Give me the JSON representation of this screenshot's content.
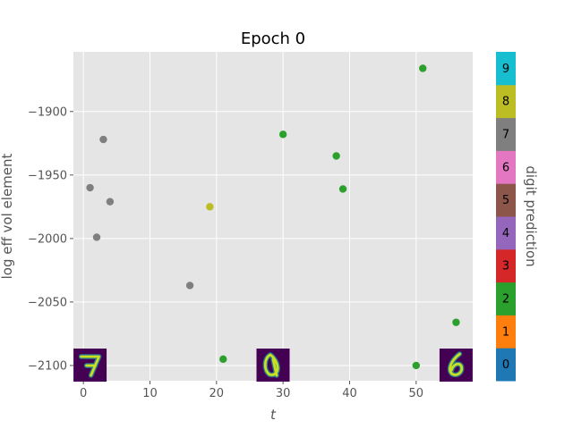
{
  "chart_data": {
    "type": "scatter",
    "title": "Epoch 0",
    "xlabel": "t",
    "ylabel": "log eff vol element",
    "xlim": [
      -1.5,
      58.5
    ],
    "ylim": [
      -2112,
      -1853
    ],
    "xticks": [
      0,
      10,
      20,
      30,
      40,
      50
    ],
    "yticks": [
      -2100,
      -2050,
      -2000,
      -1950,
      -1900
    ],
    "grid": true,
    "points": [
      {
        "x": 1,
        "y": -1960,
        "digit": 7
      },
      {
        "x": 2,
        "y": -1999,
        "digit": 7
      },
      {
        "x": 3,
        "y": -1922,
        "digit": 7
      },
      {
        "x": 4,
        "y": -1971,
        "digit": 7
      },
      {
        "x": 16,
        "y": -2037,
        "digit": 7
      },
      {
        "x": 19,
        "y": -1975,
        "digit": 8
      },
      {
        "x": 21,
        "y": -2095,
        "digit": 2
      },
      {
        "x": 30,
        "y": -1918,
        "digit": 2
      },
      {
        "x": 38,
        "y": -1935,
        "digit": 2
      },
      {
        "x": 39,
        "y": -1961,
        "digit": 2
      },
      {
        "x": 50,
        "y": -2100,
        "digit": 2
      },
      {
        "x": 51,
        "y": -1866,
        "digit": 2
      },
      {
        "x": 56,
        "y": -2066,
        "digit": 2
      }
    ],
    "thumbnails": [
      {
        "x_center": 1,
        "digit_shown": "7"
      },
      {
        "x_center": 28.5,
        "digit_shown": "0"
      },
      {
        "x_center": 56,
        "digit_shown": "6"
      }
    ],
    "colorbar": {
      "label": "digit prediction",
      "values": [
        "0",
        "1",
        "2",
        "3",
        "4",
        "5",
        "6",
        "7",
        "8",
        "9"
      ],
      "colors": [
        "#1f77b4",
        "#ff7f0e",
        "#2ca02c",
        "#d62728",
        "#9467bd",
        "#8c564b",
        "#e377c2",
        "#7f7f7f",
        "#bcbd22",
        "#17becf"
      ]
    }
  }
}
